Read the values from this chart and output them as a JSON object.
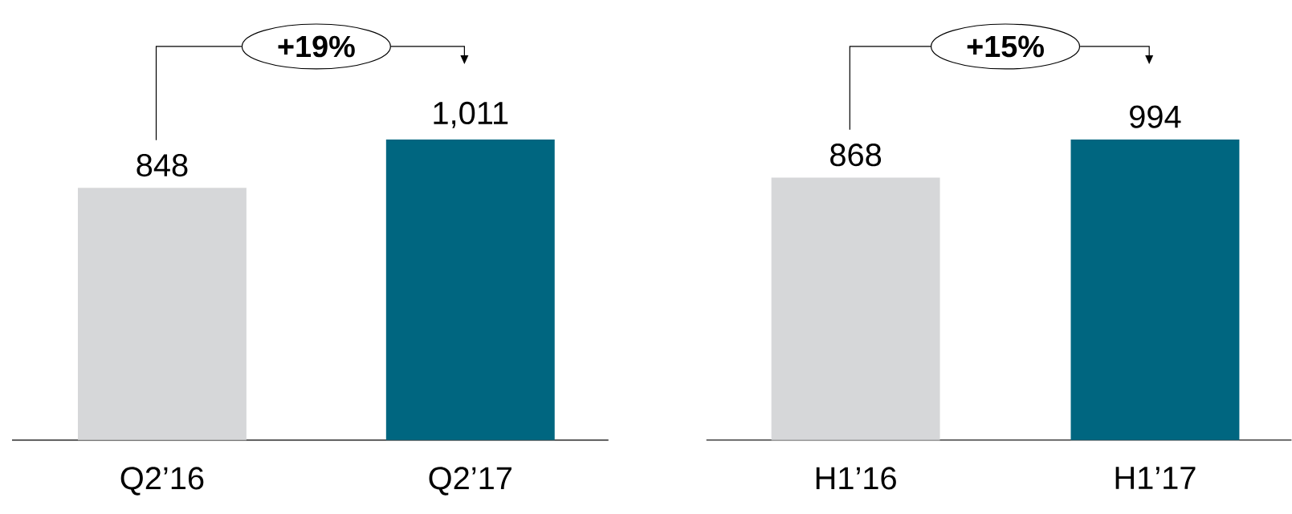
{
  "chart_data": [
    {
      "type": "bar",
      "categories": [
        "Q2’16",
        "Q2’17"
      ],
      "values": [
        848,
        1011
      ],
      "colors": [
        "#d6d7d9",
        "#006680"
      ],
      "value_labels": [
        "848",
        "1,011"
      ],
      "annotations": [
        "+19%"
      ],
      "tick_labels": "x"
    },
    {
      "type": "bar",
      "categories": [
        "H1’16",
        "H1’17"
      ],
      "values": [
        868,
        994
      ],
      "colors": [
        "#d6d7d9",
        "#006680"
      ],
      "value_labels": [
        "868",
        "994"
      ],
      "annotations": [
        "+15%"
      ],
      "tick_labels": "x"
    }
  ]
}
